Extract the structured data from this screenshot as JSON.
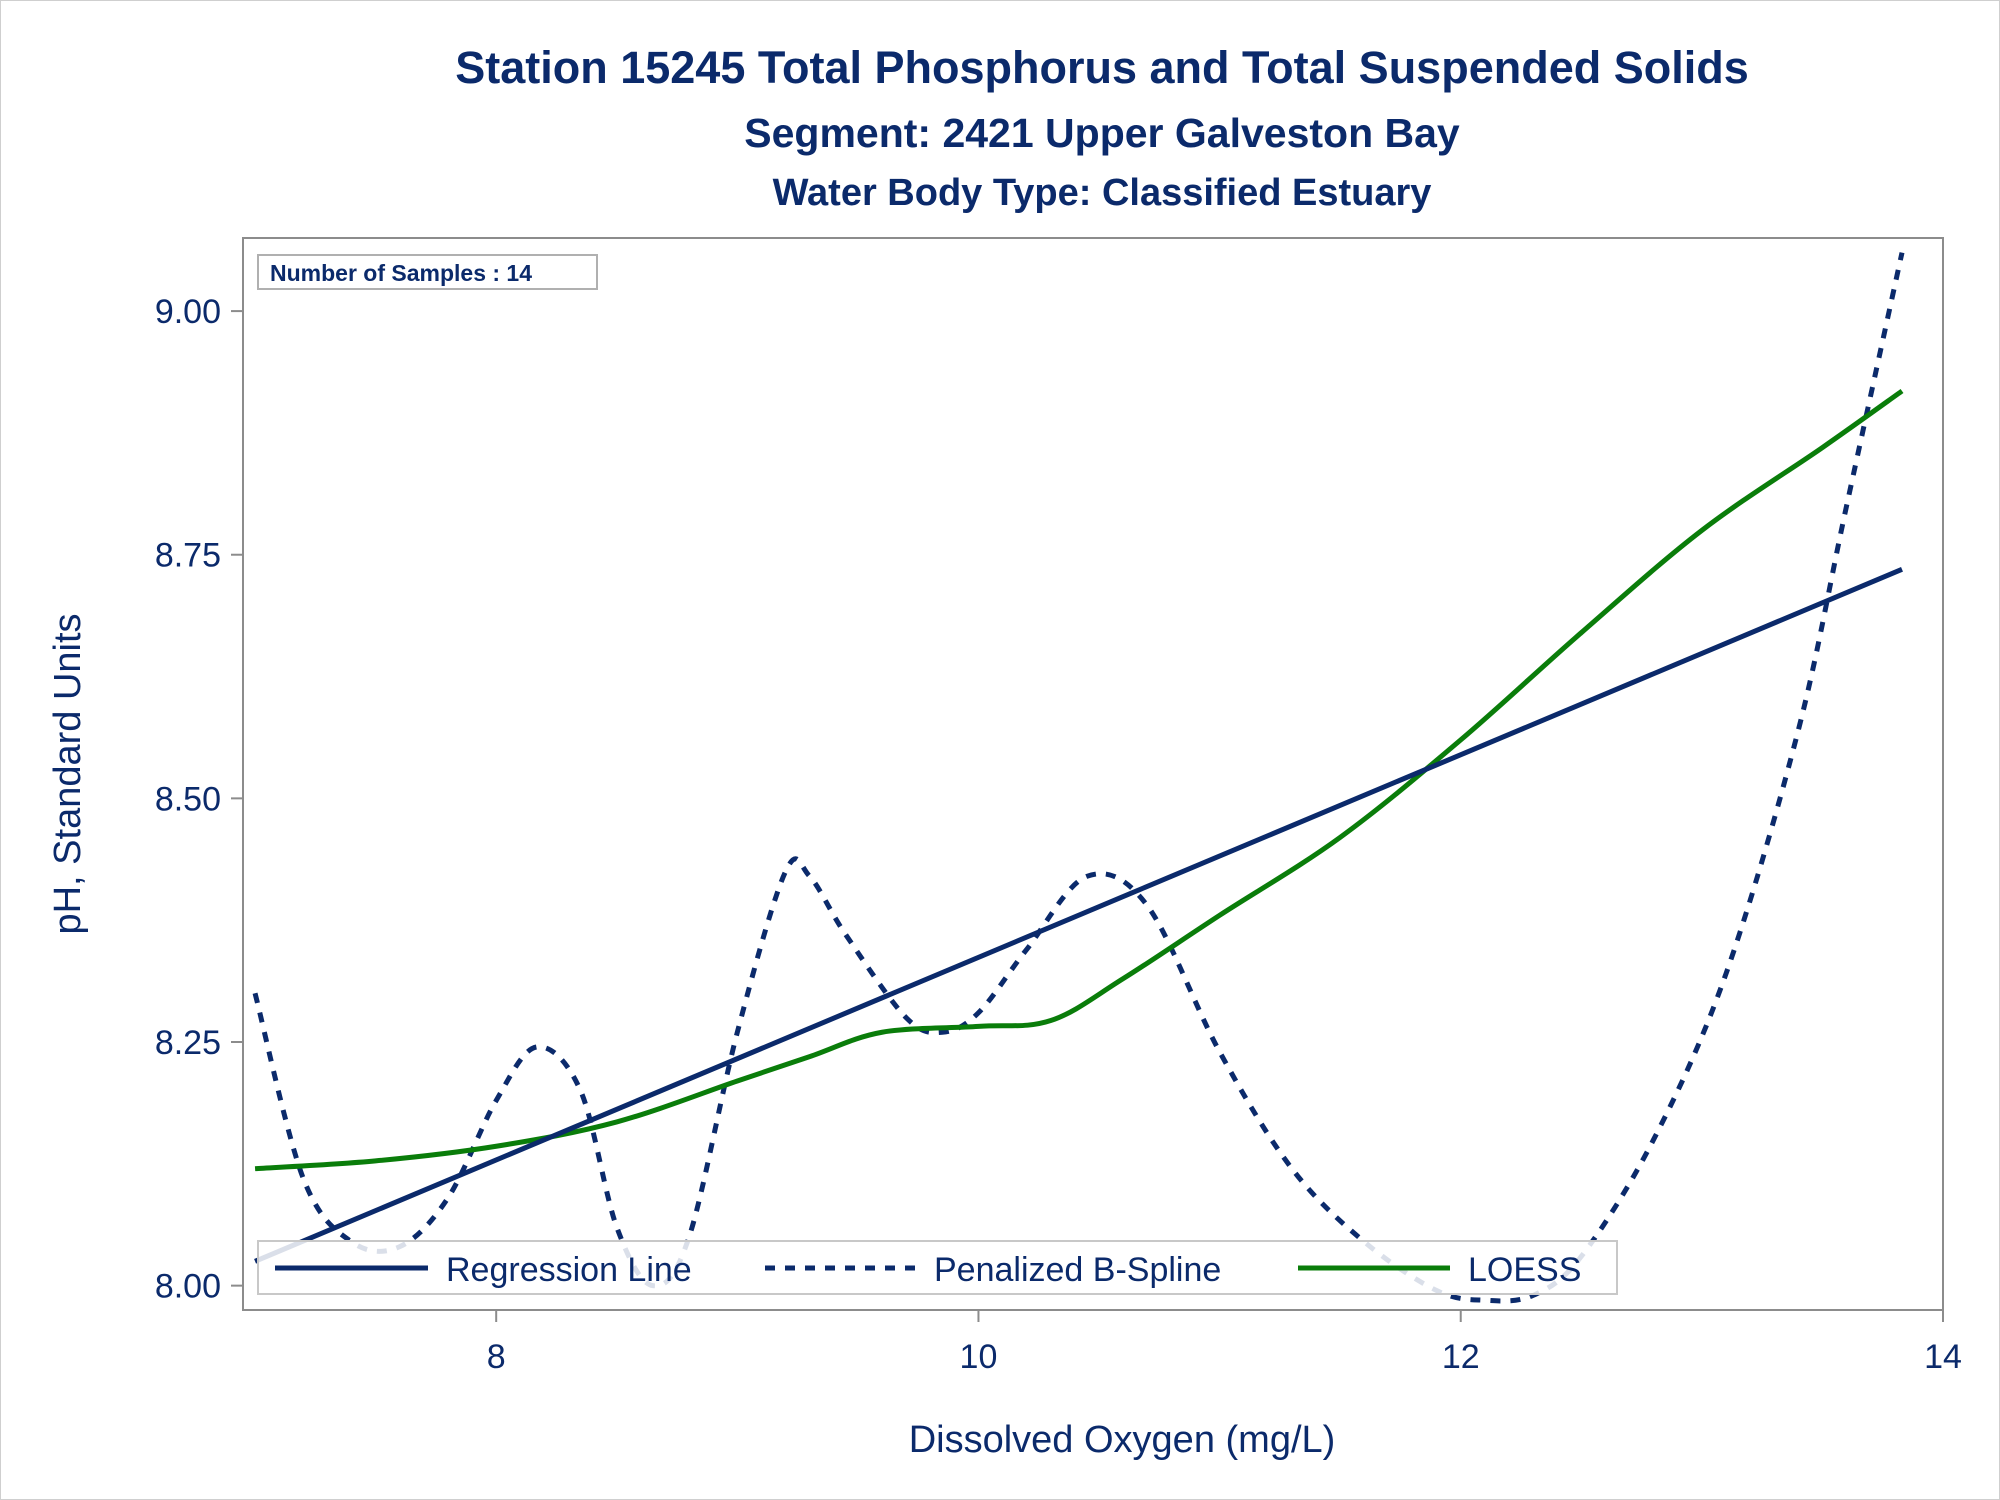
{
  "titles": {
    "line1": "Station 15245  Total Phosphorus and Total Suspended Solids",
    "line2": "Segment: 2421  Upper Galveston Bay",
    "line3": "Water Body Type: Classified Estuary"
  },
  "inset": {
    "label": "Number of Samples : 14"
  },
  "colors": {
    "text": "#0b2a6b",
    "regression": "#0b2a6b",
    "spline": "#0b2a6b",
    "loess": "#0a7d0a",
    "axis": "#8c8c8c"
  },
  "chart_data": {
    "type": "line",
    "xlabel": "Dissolved Oxygen (mg/L)",
    "ylabel": "pH, Standard Units",
    "xlim": [
      6.95,
      14.0
    ],
    "ylim": [
      7.975,
      9.075
    ],
    "xticks": [
      8,
      10,
      12,
      14
    ],
    "xtick_labels": [
      "8",
      "10",
      "12",
      "14"
    ],
    "yticks": [
      8.0,
      8.25,
      8.5,
      8.75,
      9.0
    ],
    "ytick_labels": [
      "8.00",
      "8.25",
      "8.50",
      "8.75",
      "9.00"
    ],
    "grid": false,
    "legend_position": "bottom-inside",
    "series": [
      {
        "name": "Regression Line",
        "style": "solid",
        "x": [
          7.0,
          13.83
        ],
        "y": [
          8.025,
          8.735
        ]
      },
      {
        "name": "Penalized B-Spline",
        "style": "dashed",
        "x": [
          7.0,
          7.2,
          7.4,
          7.6,
          7.8,
          8.0,
          8.17,
          8.35,
          8.5,
          8.65,
          8.8,
          9.0,
          9.2,
          9.3,
          9.45,
          9.7,
          9.85,
          10.0,
          10.2,
          10.45,
          10.7,
          11.0,
          11.3,
          11.6,
          11.9,
          12.1,
          12.3,
          12.5,
          12.8,
          13.1,
          13.4,
          13.6,
          13.83
        ],
        "y": [
          8.3,
          8.11,
          8.045,
          8.04,
          8.09,
          8.19,
          8.245,
          8.2,
          8.06,
          8.0,
          8.05,
          8.26,
          8.425,
          8.42,
          8.36,
          8.275,
          8.26,
          8.28,
          8.345,
          8.42,
          8.39,
          8.24,
          8.12,
          8.045,
          7.995,
          7.985,
          7.99,
          8.03,
          8.15,
          8.32,
          8.57,
          8.8,
          9.06
        ]
      },
      {
        "name": "LOESS",
        "style": "solid",
        "x": [
          7.0,
          7.5,
          8.0,
          8.5,
          9.0,
          9.3,
          9.6,
          10.0,
          10.3,
          10.6,
          11.0,
          11.5,
          12.0,
          12.5,
          13.0,
          13.5,
          13.83
        ],
        "y": [
          8.12,
          8.128,
          8.143,
          8.168,
          8.21,
          8.235,
          8.26,
          8.266,
          8.272,
          8.315,
          8.38,
          8.46,
          8.56,
          8.67,
          8.775,
          8.86,
          8.918
        ]
      }
    ]
  }
}
